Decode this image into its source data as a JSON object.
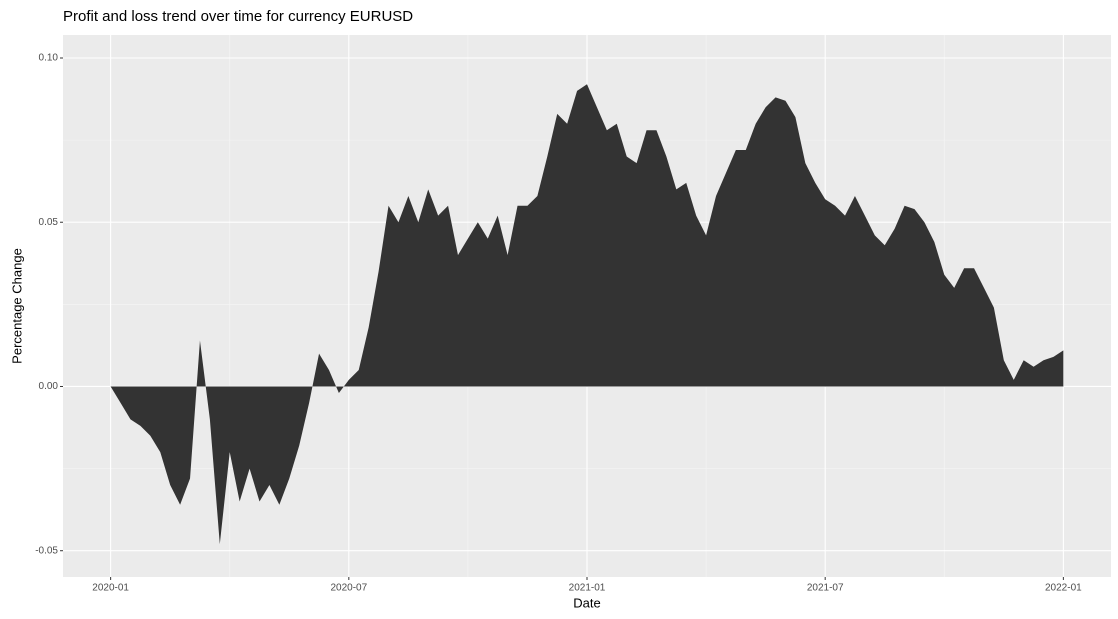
{
  "chart_data": {
    "type": "area",
    "title": "Profit and loss trend over time for currency EURUSD",
    "x_label": "Date",
    "y_label": "Percentage Change",
    "color": "#333333",
    "grid": true,
    "xlim": [
      -1.2,
      25.2
    ],
    "ylim": [
      -0.058,
      0.107
    ],
    "xticks": [
      {
        "value": 0,
        "label": "2020-01"
      },
      {
        "value": 6,
        "label": "2020-07"
      },
      {
        "value": 12,
        "label": "2021-01"
      },
      {
        "value": 18,
        "label": "2021-07"
      },
      {
        "value": 24,
        "label": "2022-01"
      }
    ],
    "yticks": [
      {
        "value": -0.05,
        "label": "-0.05"
      },
      {
        "value": 0,
        "label": "0.00"
      },
      0.05,
      {
        "value": 0.1,
        "label": "0.10"
      }
    ],
    "x": [
      0,
      0.25,
      0.5,
      0.75,
      1,
      1.25,
      1.5,
      1.75,
      2,
      2.25,
      2.5,
      2.75,
      3,
      3.25,
      3.5,
      3.75,
      4,
      4.25,
      4.5,
      4.75,
      5,
      5.25,
      5.5,
      5.75,
      6,
      6.25,
      6.5,
      6.75,
      7,
      7.25,
      7.5,
      7.75,
      8,
      8.25,
      8.5,
      8.75,
      9,
      9.25,
      9.5,
      9.75,
      10,
      10.25,
      10.5,
      10.75,
      11,
      11.25,
      11.5,
      11.75,
      12,
      12.25,
      12.5,
      12.75,
      13,
      13.25,
      13.5,
      13.75,
      14,
      14.25,
      14.5,
      14.75,
      15,
      15.25,
      15.5,
      15.75,
      16,
      16.25,
      16.5,
      16.75,
      17,
      17.25,
      17.5,
      17.75,
      18,
      18.25,
      18.5,
      18.75,
      19,
      19.25,
      19.5,
      19.75,
      20,
      20.25,
      20.5,
      20.75,
      21,
      21.25,
      21.5,
      21.75,
      22,
      22.25,
      22.5,
      22.75,
      23,
      23.25,
      23.5,
      23.75,
      24
    ],
    "values": [
      0,
      -0.005,
      -0.01,
      -0.012,
      -0.015,
      -0.02,
      -0.03,
      -0.036,
      -0.028,
      0.014,
      -0.01,
      -0.048,
      -0.02,
      -0.035,
      -0.025,
      -0.035,
      -0.03,
      -0.036,
      -0.028,
      -0.018,
      -0.005,
      0.01,
      0.005,
      -0.002,
      0.002,
      0.005,
      0.018,
      0.035,
      0.055,
      0.05,
      0.058,
      0.05,
      0.06,
      0.052,
      0.055,
      0.04,
      0.045,
      0.05,
      0.045,
      0.052,
      0.04,
      0.055,
      0.055,
      0.058,
      0.07,
      0.083,
      0.08,
      0.09,
      0.092,
      0.085,
      0.078,
      0.08,
      0.07,
      0.068,
      0.078,
      0.078,
      0.07,
      0.06,
      0.062,
      0.052,
      0.046,
      0.058,
      0.065,
      0.072,
      0.072,
      0.08,
      0.085,
      0.088,
      0.087,
      0.082,
      0.068,
      0.062,
      0.057,
      0.055,
      0.052,
      0.058,
      0.052,
      0.046,
      0.043,
      0.048,
      0.055,
      0.054,
      0.05,
      0.044,
      0.034,
      0.03,
      0.036,
      0.036,
      0.03,
      0.024,
      0.008,
      0.002,
      0.008,
      0.006,
      0.008,
      0.009,
      0.011
    ]
  }
}
